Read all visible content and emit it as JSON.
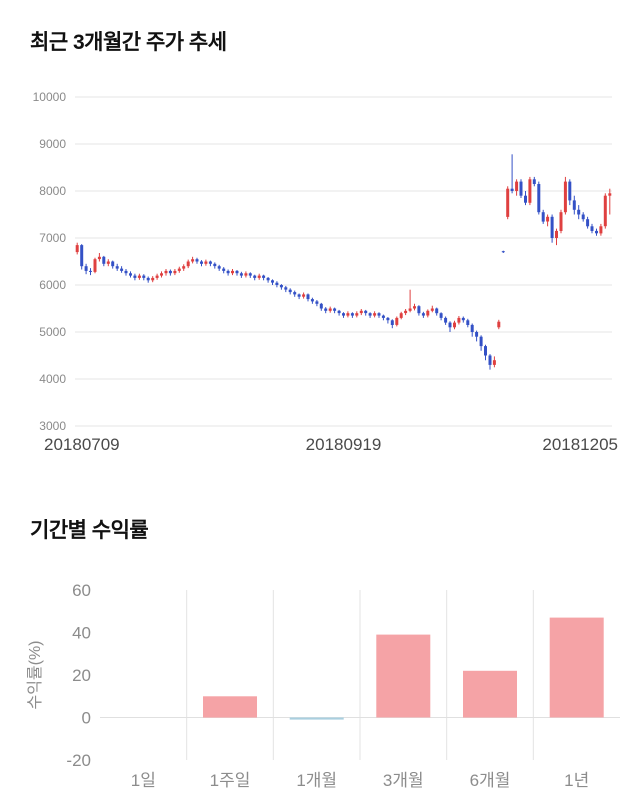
{
  "chart_data": [
    {
      "type": "candlestick",
      "title": "최근 3개월간 주가 추세",
      "ylim": [
        3000,
        10000
      ],
      "ytick_step": 1000,
      "x_labels": [
        "20180709",
        "20180919",
        "20181205"
      ],
      "colors": {
        "up": "#df4040",
        "down": "#3451c6",
        "grid": "#e6e6e6"
      },
      "candles": [
        [
          6700,
          6900,
          6650,
          6850
        ],
        [
          6850,
          6870,
          6330,
          6400
        ],
        [
          6400,
          6450,
          6230,
          6300
        ],
        [
          6300,
          6360,
          6210,
          6280
        ],
        [
          6280,
          6580,
          6250,
          6550
        ],
        [
          6550,
          6680,
          6500,
          6600
        ],
        [
          6600,
          6620,
          6400,
          6450
        ],
        [
          6450,
          6550,
          6400,
          6500
        ],
        [
          6500,
          6520,
          6350,
          6400
        ],
        [
          6400,
          6450,
          6300,
          6350
        ],
        [
          6350,
          6400,
          6260,
          6300
        ],
        [
          6300,
          6340,
          6200,
          6250
        ],
        [
          6250,
          6290,
          6160,
          6200
        ],
        [
          6200,
          6240,
          6100,
          6150
        ],
        [
          6150,
          6240,
          6110,
          6200
        ],
        [
          6200,
          6230,
          6100,
          6150
        ],
        [
          6150,
          6180,
          6050,
          6100
        ],
        [
          6100,
          6190,
          6060,
          6150
        ],
        [
          6150,
          6240,
          6110,
          6200
        ],
        [
          6200,
          6290,
          6160,
          6250
        ],
        [
          6250,
          6340,
          6200,
          6300
        ],
        [
          6300,
          6330,
          6200,
          6250
        ],
        [
          6250,
          6340,
          6210,
          6300
        ],
        [
          6300,
          6390,
          6260,
          6350
        ],
        [
          6350,
          6440,
          6300,
          6400
        ],
        [
          6400,
          6540,
          6360,
          6500
        ],
        [
          6500,
          6600,
          6460,
          6550
        ],
        [
          6550,
          6580,
          6450,
          6500
        ],
        [
          6500,
          6530,
          6400,
          6450
        ],
        [
          6450,
          6540,
          6410,
          6500
        ],
        [
          6500,
          6520,
          6400,
          6450
        ],
        [
          6450,
          6480,
          6350,
          6400
        ],
        [
          6400,
          6430,
          6300,
          6350
        ],
        [
          6350,
          6380,
          6250,
          6300
        ],
        [
          6300,
          6330,
          6200,
          6250
        ],
        [
          6250,
          6340,
          6210,
          6300
        ],
        [
          6300,
          6320,
          6200,
          6250
        ],
        [
          6250,
          6280,
          6150,
          6200
        ],
        [
          6200,
          6290,
          6160,
          6250
        ],
        [
          6250,
          6270,
          6150,
          6200
        ],
        [
          6200,
          6220,
          6100,
          6150
        ],
        [
          6150,
          6240,
          6110,
          6200
        ],
        [
          6200,
          6220,
          6100,
          6150
        ],
        [
          6150,
          6170,
          6050,
          6100
        ],
        [
          6100,
          6120,
          6000,
          6050
        ],
        [
          6050,
          6080,
          5950,
          6000
        ],
        [
          6000,
          6020,
          5900,
          5950
        ],
        [
          5950,
          5980,
          5850,
          5900
        ],
        [
          5900,
          5930,
          5800,
          5850
        ],
        [
          5850,
          5880,
          5750,
          5800
        ],
        [
          5800,
          5820,
          5700,
          5750
        ],
        [
          5750,
          5840,
          5710,
          5800
        ],
        [
          5800,
          5820,
          5650,
          5700
        ],
        [
          5700,
          5730,
          5600,
          5650
        ],
        [
          5650,
          5680,
          5550,
          5600
        ],
        [
          5600,
          5620,
          5450,
          5500
        ],
        [
          5500,
          5530,
          5400,
          5450
        ],
        [
          5450,
          5540,
          5410,
          5500
        ],
        [
          5500,
          5520,
          5400,
          5450
        ],
        [
          5450,
          5470,
          5350,
          5400
        ],
        [
          5400,
          5420,
          5300,
          5350
        ],
        [
          5350,
          5440,
          5310,
          5400
        ],
        [
          5400,
          5420,
          5300,
          5350
        ],
        [
          5350,
          5440,
          5310,
          5400
        ],
        [
          5400,
          5490,
          5360,
          5450
        ],
        [
          5450,
          5470,
          5350,
          5400
        ],
        [
          5400,
          5420,
          5300,
          5350
        ],
        [
          5350,
          5440,
          5310,
          5400
        ],
        [
          5400,
          5420,
          5300,
          5350
        ],
        [
          5350,
          5370,
          5250,
          5300
        ],
        [
          5300,
          5320,
          5180,
          5250
        ],
        [
          5250,
          5270,
          5080,
          5150
        ],
        [
          5150,
          5330,
          5120,
          5300
        ],
        [
          5300,
          5430,
          5270,
          5400
        ],
        [
          5400,
          5490,
          5360,
          5450
        ],
        [
          5450,
          5900,
          5420,
          5500
        ],
        [
          5500,
          5600,
          5460,
          5550
        ],
        [
          5550,
          5570,
          5350,
          5400
        ],
        [
          5400,
          5430,
          5300,
          5350
        ],
        [
          5350,
          5480,
          5310,
          5450
        ],
        [
          5450,
          5560,
          5420,
          5500
        ],
        [
          5500,
          5520,
          5350,
          5400
        ],
        [
          5400,
          5420,
          5250,
          5300
        ],
        [
          5300,
          5330,
          5150,
          5200
        ],
        [
          5200,
          5230,
          5000,
          5100
        ],
        [
          5100,
          5240,
          5060,
          5200
        ],
        [
          5200,
          5340,
          5160,
          5300
        ],
        [
          5300,
          5330,
          5200,
          5250
        ],
        [
          5250,
          5280,
          5100,
          5150
        ],
        [
          5150,
          5180,
          4900,
          5000
        ],
        [
          5000,
          5030,
          4800,
          4900
        ],
        [
          4900,
          4930,
          4600,
          4700
        ],
        [
          4700,
          4730,
          4400,
          4500
        ],
        [
          4500,
          4530,
          4200,
          4300
        ],
        [
          4300,
          4480,
          4250,
          4400
        ],
        [
          5100,
          5260,
          5060,
          5220
        ],
        [
          6720,
          6730,
          6680,
          6700
        ],
        [
          7450,
          8100,
          7400,
          8050
        ],
        [
          8050,
          8780,
          7950,
          8000
        ],
        [
          8000,
          8250,
          7900,
          8200
        ],
        [
          8200,
          8250,
          7850,
          7900
        ],
        [
          7900,
          8000,
          7700,
          7750
        ],
        [
          7750,
          8300,
          7700,
          8250
        ],
        [
          8250,
          8300,
          8100,
          8150
        ],
        [
          8150,
          8200,
          7500,
          7550
        ],
        [
          7550,
          7600,
          7300,
          7350
        ],
        [
          7350,
          7500,
          7250,
          7450
        ],
        [
          7450,
          7500,
          6900,
          7000
        ],
        [
          7000,
          7200,
          6850,
          7150
        ],
        [
          7150,
          7600,
          7100,
          7550
        ],
        [
          7550,
          8300,
          7500,
          8200
        ],
        [
          8200,
          8250,
          7700,
          7800
        ],
        [
          7800,
          7900,
          7500,
          7600
        ],
        [
          7600,
          7700,
          7400,
          7500
        ],
        [
          7500,
          7550,
          7350,
          7400
        ],
        [
          7400,
          7450,
          7200,
          7250
        ],
        [
          7250,
          7300,
          7100,
          7150
        ],
        [
          7150,
          7200,
          7050,
          7100
        ],
        [
          7100,
          7300,
          7050,
          7250
        ],
        [
          7250,
          7950,
          7200,
          7900
        ],
        [
          7900,
          8050,
          7500,
          7950
        ]
      ]
    },
    {
      "type": "bar",
      "title": "기간별 수익률",
      "ylabel": "수익률(%)",
      "categories": [
        "1일",
        "1주일",
        "1개월",
        "3개월",
        "6개월",
        "1년"
      ],
      "values": [
        0,
        10,
        -1,
        39,
        22,
        47
      ],
      "bar_colors": [
        "#f5a3a6",
        "#f5a3a6",
        "#a9cfdf",
        "#f5a3a6",
        "#f5a3a6",
        "#f5a3a6"
      ],
      "ylim": [
        -20,
        60
      ],
      "yticks": [
        60,
        40,
        20,
        0,
        -20
      ],
      "grid": "vertical"
    }
  ]
}
